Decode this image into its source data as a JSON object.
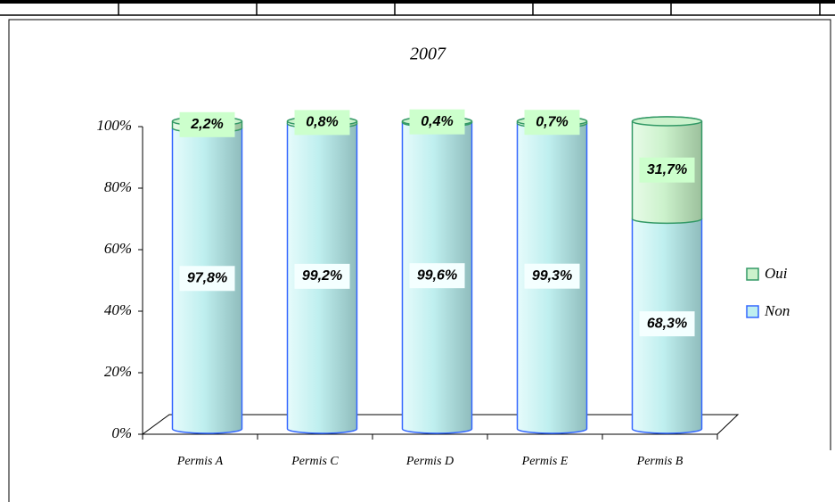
{
  "chart_data": {
    "type": "stacked_bar",
    "title": "2007",
    "categories": [
      "Permis A",
      "Permis C",
      "Permis D",
      "Permis E",
      "Permis B"
    ],
    "series": [
      {
        "name": "Non",
        "color": "#bfefef",
        "values": [
          97.8,
          99.2,
          99.6,
          99.3,
          68.3
        ],
        "value_labels": [
          "97,8%",
          "99,2%",
          "99,6%",
          "99,3%",
          "68,3%"
        ]
      },
      {
        "name": "Oui",
        "color": "#ccf2cc",
        "values": [
          2.2,
          0.8,
          0.4,
          0.7,
          31.7
        ],
        "value_labels": [
          "2,2%",
          "0,8%",
          "0,4%",
          "0,7%",
          "31,7%"
        ]
      }
    ],
    "ylim": [
      0,
      100
    ],
    "yticks": [
      {
        "value": 0,
        "label": "0%"
      },
      {
        "value": 20,
        "label": "20%"
      },
      {
        "value": 40,
        "label": "40%"
      },
      {
        "value": 60,
        "label": "60%"
      },
      {
        "value": 80,
        "label": "80%"
      },
      {
        "value": 100,
        "label": "100%"
      }
    ],
    "legend": "right"
  }
}
